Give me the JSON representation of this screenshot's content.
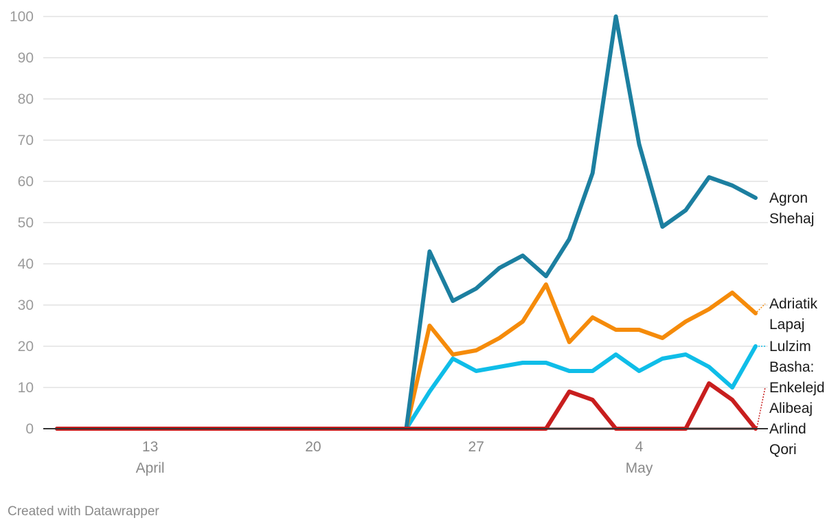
{
  "chart_data": {
    "type": "line",
    "x_start": "2020-04-09",
    "x_end": "2020-05-09",
    "ylim": [
      0,
      100
    ],
    "yticks": [
      0,
      10,
      20,
      30,
      40,
      50,
      60,
      70,
      80,
      90,
      100
    ],
    "xticks": [
      {
        "date": "2020-04-13",
        "label": "13",
        "sublabel": "April"
      },
      {
        "date": "2020-04-20",
        "label": "20",
        "sublabel": ""
      },
      {
        "date": "2020-04-27",
        "label": "27",
        "sublabel": ""
      },
      {
        "date": "2020-05-04",
        "label": "4",
        "sublabel": "May"
      }
    ],
    "grid": true,
    "series": [
      {
        "name": "Arlind Qori",
        "label_lines": [
          "Arlind",
          "Qori"
        ],
        "color": "#5a1212",
        "points": [
          [
            "2020-04-09",
            0
          ],
          [
            "2020-05-09",
            0
          ]
        ]
      },
      {
        "name": "Lulzim Basha:",
        "label_lines": [
          "Lulzim",
          "Basha:"
        ],
        "color": "#0fbde8",
        "points": [
          [
            "2020-04-09",
            0
          ],
          [
            "2020-04-24",
            0
          ],
          [
            "2020-04-25",
            9
          ],
          [
            "2020-04-26",
            17
          ],
          [
            "2020-04-27",
            14
          ],
          [
            "2020-04-28",
            15
          ],
          [
            "2020-04-29",
            16
          ],
          [
            "2020-04-30",
            16
          ],
          [
            "2020-05-01",
            14
          ],
          [
            "2020-05-02",
            14
          ],
          [
            "2020-05-03",
            18
          ],
          [
            "2020-05-04",
            14
          ],
          [
            "2020-05-05",
            17
          ],
          [
            "2020-05-06",
            18
          ],
          [
            "2020-05-07",
            15
          ],
          [
            "2020-05-08",
            10
          ],
          [
            "2020-05-09",
            20
          ]
        ]
      },
      {
        "name": "Adriatik Lapaj",
        "label_lines": [
          "Adriatik",
          "Lapaj"
        ],
        "color": "#f58b0a",
        "points": [
          [
            "2020-04-09",
            0
          ],
          [
            "2020-04-24",
            0
          ],
          [
            "2020-04-25",
            25
          ],
          [
            "2020-04-26",
            18
          ],
          [
            "2020-04-27",
            19
          ],
          [
            "2020-04-28",
            22
          ],
          [
            "2020-04-29",
            26
          ],
          [
            "2020-04-30",
            35
          ],
          [
            "2020-05-01",
            21
          ],
          [
            "2020-05-02",
            27
          ],
          [
            "2020-05-03",
            24
          ],
          [
            "2020-05-04",
            24
          ],
          [
            "2020-05-05",
            22
          ],
          [
            "2020-05-06",
            26
          ],
          [
            "2020-05-07",
            29
          ],
          [
            "2020-05-08",
            33
          ],
          [
            "2020-05-09",
            28
          ]
        ]
      },
      {
        "name": "Agron Shehaj",
        "label_lines": [
          "Agron",
          "Shehaj"
        ],
        "color": "#1c7fa0",
        "points": [
          [
            "2020-04-09",
            0
          ],
          [
            "2020-04-24",
            0
          ],
          [
            "2020-04-25",
            43
          ],
          [
            "2020-04-26",
            31
          ],
          [
            "2020-04-27",
            34
          ],
          [
            "2020-04-28",
            39
          ],
          [
            "2020-04-29",
            42
          ],
          [
            "2020-04-30",
            37
          ],
          [
            "2020-05-01",
            46
          ],
          [
            "2020-05-02",
            62
          ],
          [
            "2020-05-03",
            100
          ],
          [
            "2020-05-04",
            69
          ],
          [
            "2020-05-05",
            49
          ],
          [
            "2020-05-06",
            53
          ],
          [
            "2020-05-07",
            61
          ],
          [
            "2020-05-08",
            59
          ],
          [
            "2020-05-09",
            56
          ]
        ]
      },
      {
        "name": "Enkelejd Alibeaj",
        "label_lines": [
          "Enkelejd",
          "Alibeaj"
        ],
        "color": "#c81e1e",
        "points": [
          [
            "2020-04-09",
            0
          ],
          [
            "2020-04-30",
            0
          ],
          [
            "2020-05-01",
            9
          ],
          [
            "2020-05-02",
            7
          ],
          [
            "2020-05-03",
            0
          ],
          [
            "2020-05-06",
            0
          ],
          [
            "2020-05-07",
            11
          ],
          [
            "2020-05-08",
            7
          ],
          [
            "2020-05-09",
            0
          ]
        ]
      }
    ]
  },
  "footer": {
    "credit": "Created with Datawrapper"
  }
}
